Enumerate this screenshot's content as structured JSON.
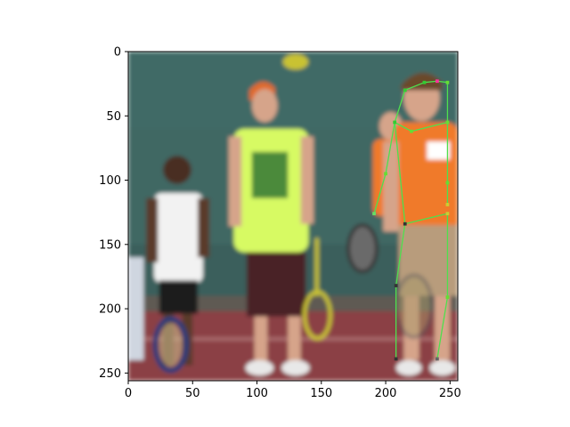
{
  "figure": {
    "axes": {
      "x_ticks": [
        0,
        50,
        100,
        150,
        200,
        250
      ],
      "y_ticks": [
        0,
        50,
        100,
        150,
        200,
        250
      ],
      "x_range": [
        0,
        256
      ],
      "y_range": [
        256,
        0
      ],
      "y_inverted": true
    },
    "image": {
      "pixel_size": [
        256,
        256
      ],
      "scene_colors": {
        "background_fence": "#3f6763",
        "court": "#8b3f45",
        "court_line": "#d9d9d9",
        "skin_dark": "#5a3a2a",
        "skin_light": "#d6a48a",
        "shirt_white": "#f2f2f2",
        "shirt_lime": "#d7fa63",
        "shirt_orange": "#f07a2a",
        "shorts_black": "#1c1a1a",
        "shorts_maroon": "#4a2426",
        "shorts_khaki": "#b89c7c",
        "cap_orange": "#e06a2a"
      }
    },
    "pose_overlay": {
      "line_color": "#4ee04e",
      "keypoints": [
        {
          "name": "head-top-left",
          "x": 230,
          "y": 24,
          "color": "#33cc33"
        },
        {
          "name": "head-top-center",
          "x": 240,
          "y": 23,
          "color": "#ff3399"
        },
        {
          "name": "head-top-right",
          "x": 248,
          "y": 24,
          "color": "#66dd33"
        },
        {
          "name": "left-shoulder",
          "x": 215,
          "y": 30,
          "color": "#33cc33"
        },
        {
          "name": "neck",
          "x": 207,
          "y": 55,
          "color": "#33cc33"
        },
        {
          "name": "right-shoulder",
          "x": 248,
          "y": 55,
          "color": "#66dd33"
        },
        {
          "name": "chest",
          "x": 220,
          "y": 62,
          "color": "#66dd33"
        },
        {
          "name": "left-elbow",
          "x": 200,
          "y": 95,
          "color": "#66dd33"
        },
        {
          "name": "right-elbow",
          "x": 248,
          "y": 102,
          "color": "#66dd33"
        },
        {
          "name": "left-wrist",
          "x": 191,
          "y": 126,
          "color": "#66dd66"
        },
        {
          "name": "right-hip",
          "x": 248,
          "y": 119,
          "color": "#cccc33"
        },
        {
          "name": "left-hip",
          "x": 215,
          "y": 134,
          "color": "#333333"
        },
        {
          "name": "right-hip-low",
          "x": 248,
          "y": 126,
          "color": "#cccc33"
        },
        {
          "name": "left-knee",
          "x": 208,
          "y": 182,
          "color": "#333333"
        },
        {
          "name": "right-knee",
          "x": 248,
          "y": 191,
          "color": "#66dd33"
        },
        {
          "name": "left-ankle",
          "x": 208,
          "y": 239,
          "color": "#333333"
        },
        {
          "name": "right-ankle",
          "x": 240,
          "y": 239,
          "color": "#666666"
        }
      ],
      "skeleton": [
        [
          "head-top-left",
          "head-top-center"
        ],
        [
          "head-top-center",
          "head-top-right"
        ],
        [
          "head-top-left",
          "left-shoulder"
        ],
        [
          "left-shoulder",
          "neck"
        ],
        [
          "head-top-right",
          "right-shoulder"
        ],
        [
          "neck",
          "chest"
        ],
        [
          "chest",
          "right-shoulder"
        ],
        [
          "neck",
          "left-elbow"
        ],
        [
          "left-elbow",
          "left-wrist"
        ],
        [
          "right-shoulder",
          "right-elbow"
        ],
        [
          "right-elbow",
          "right-hip"
        ],
        [
          "neck",
          "left-hip"
        ],
        [
          "left-hip",
          "right-hip-low"
        ],
        [
          "right-hip-low",
          "right-knee"
        ],
        [
          "left-hip",
          "left-knee"
        ],
        [
          "left-knee",
          "left-ankle"
        ],
        [
          "right-knee",
          "right-ankle"
        ]
      ]
    }
  }
}
